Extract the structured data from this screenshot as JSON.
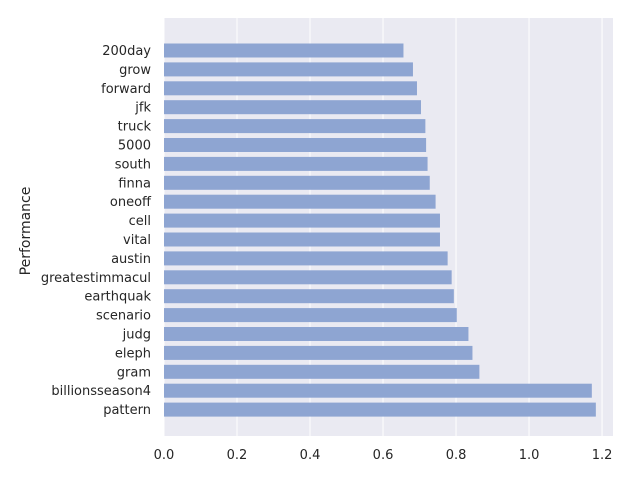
{
  "chart_data": {
    "type": "bar",
    "orientation": "horizontal",
    "title": "",
    "xlabel": "",
    "ylabel": "Performance",
    "xlim": [
      0,
      1.23
    ],
    "xticks": [
      0.0,
      0.2,
      0.4,
      0.6,
      0.8,
      1.0,
      1.2
    ],
    "xtick_labels": [
      "0.0",
      "0.2",
      "0.4",
      "0.6",
      "0.8",
      "1.0",
      "1.2"
    ],
    "grid": true,
    "bar_color": "#8ea5d2",
    "background_color": "#eaeaf2",
    "grid_color": "#ffffff",
    "categories": [
      "200day",
      "grow",
      "forward",
      "jfk",
      "truck",
      "5000",
      "south",
      "finna",
      "oneoff",
      "cell",
      "vital",
      "austin",
      "greatestimmacul",
      "earthquak",
      "scenario",
      "judg",
      "eleph",
      "gram",
      "billionsseason4",
      "pattern"
    ],
    "values": [
      0.656,
      0.682,
      0.693,
      0.704,
      0.716,
      0.718,
      0.722,
      0.728,
      0.744,
      0.756,
      0.756,
      0.777,
      0.788,
      0.794,
      0.802,
      0.834,
      0.845,
      0.864,
      1.172,
      1.183
    ]
  }
}
